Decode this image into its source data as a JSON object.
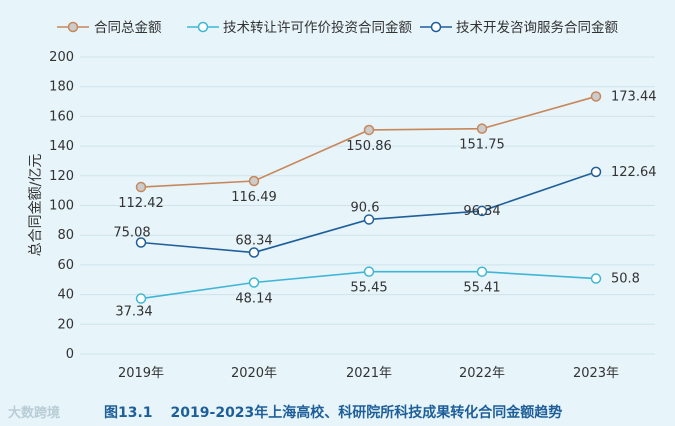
{
  "chart_data": {
    "type": "line",
    "categories": [
      "2019年",
      "2020年",
      "2021年",
      "2022年",
      "2023年"
    ],
    "ylabel": "总合同金额/亿元",
    "ylim": [
      0,
      200
    ],
    "yticks": [
      0,
      20,
      40,
      60,
      80,
      100,
      120,
      140,
      160,
      180,
      200
    ],
    "grid": true,
    "legend_position": "top",
    "series": [
      {
        "name": "合同总金额",
        "color": "#c8875a",
        "marker_fill": "#cccccc",
        "values": [
          112.42,
          116.49,
          150.86,
          151.75,
          173.44
        ]
      },
      {
        "name": "技术转让许可作价投资合同金额",
        "color": "#3fb6d6",
        "marker_fill": "#ffffff",
        "values": [
          37.34,
          48.14,
          55.45,
          55.41,
          50.8
        ]
      },
      {
        "name": "技术开发咨询服务合同金额",
        "color": "#1f5f99",
        "marker_fill": "#ffffff",
        "values": [
          75.08,
          68.34,
          90.6,
          96.34,
          122.64
        ]
      }
    ],
    "data_labels": [
      [
        "112.42",
        "116.49",
        "150.86",
        "151.75",
        "173.44"
      ],
      [
        "37.34",
        "48.14",
        "55.45",
        "55.41",
        "50.8"
      ],
      [
        "75.08",
        "68.34",
        "90.6",
        "96.34",
        "122.64"
      ]
    ]
  },
  "caption": {
    "number": "图13.1",
    "text": "2019-2023年上海高校、科研院所科技成果转化合同金额趋势"
  },
  "watermark": "大数跨境"
}
